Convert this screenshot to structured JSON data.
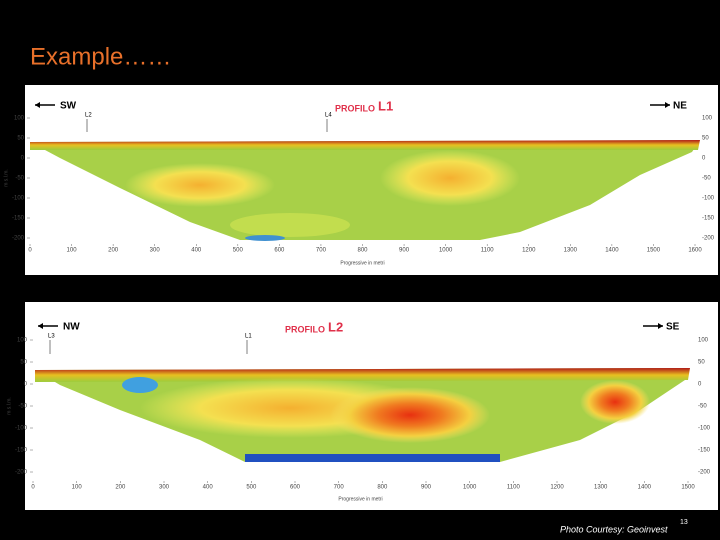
{
  "header": {
    "title": "Example……"
  },
  "panels": [
    {
      "title_prefix": "PROFILO",
      "title_id": "L1",
      "left_direction": "SW",
      "right_direction": "NE",
      "markers": [
        "L2",
        "L4"
      ],
      "y_axis_label": "m s.l.m.",
      "x_axis_label": "Progressive in metri",
      "yticks": [
        100,
        50,
        0,
        -50,
        -100,
        -150,
        -200
      ],
      "xticks": [
        0,
        100,
        200,
        300,
        400,
        500,
        600,
        700,
        800,
        900,
        1000,
        1100,
        1200,
        1300,
        1400,
        1500,
        1600
      ]
    },
    {
      "title_prefix": "PROFILO",
      "title_id": "L2",
      "left_direction": "NW",
      "right_direction": "SE",
      "markers": [
        "L3",
        "L1"
      ],
      "y_axis_label": "m s.l.m.",
      "x_axis_label": "Progressive in metri",
      "yticks": [
        100,
        50,
        0,
        -50,
        -100,
        -150,
        -200
      ],
      "xticks": [
        0,
        100,
        200,
        300,
        400,
        500,
        600,
        700,
        800,
        900,
        1000,
        1100,
        1200,
        1300,
        1400,
        1500
      ]
    }
  ],
  "footer": {
    "credit": "Photo Courtesy: Geoinvest",
    "page_number": "13"
  }
}
